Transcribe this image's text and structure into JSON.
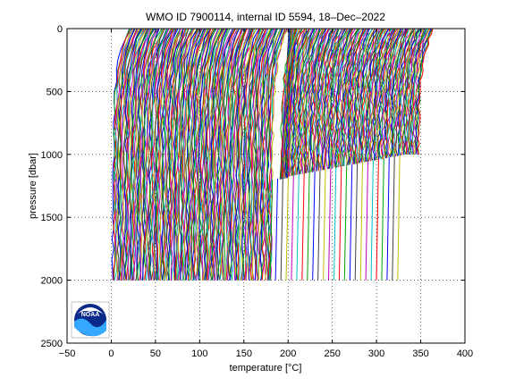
{
  "chart_data": {
    "type": "line",
    "title": "WMO ID 7900114, internal ID 5594, 18–Dec–2022",
    "xlabel": "temperature [°C]",
    "ylabel": "pressure [dbar]",
    "xlim": [
      -50,
      400
    ],
    "ylim": [
      0,
      2500
    ],
    "y_reversed": true,
    "grid": true,
    "grid_style": "dotted",
    "x_ticks": [
      -50,
      0,
      50,
      100,
      150,
      200,
      250,
      300,
      350,
      400
    ],
    "y_ticks": [
      0,
      500,
      1000,
      1500,
      2000,
      2500
    ],
    "series_description": "approx. 345 temperature profiles, each offset by ~1 °C per profile, cycling colors",
    "profile_groups": [
      {
        "offset_start": 0,
        "offset_end": 180,
        "max_pressure": 2000
      },
      {
        "offset_start": 180,
        "offset_end": 330,
        "max_pressure_at_start": 1200,
        "max_pressure_at_end": 1000,
        "deep_subset_max_pressure": 2000
      },
      {
        "offset_start": 330,
        "offset_end": 345,
        "max_pressure": 1000
      }
    ],
    "colors": [
      "#0000ff",
      "#00a000",
      "#ff0000",
      "#00bfbf",
      "#bf00bf",
      "#bfbf00",
      "#404040"
    ],
    "logo": {
      "name": "noaa-logo",
      "text": "NOAA"
    }
  }
}
